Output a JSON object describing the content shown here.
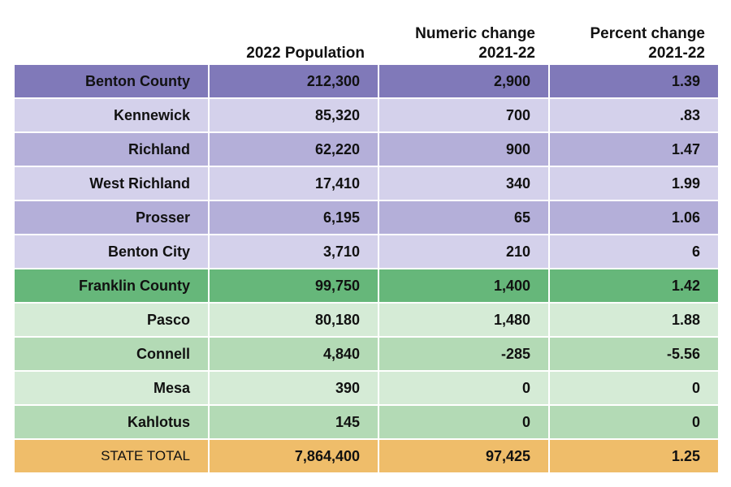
{
  "chart_data": {
    "type": "table",
    "columns": [
      "",
      "2022 Population",
      "Numeric change 2021-22",
      "Percent change 2021-22"
    ],
    "header_lines": [
      [
        ""
      ],
      [
        "2022 Population"
      ],
      [
        "Numeric change",
        "2021-22"
      ],
      [
        "Percent change",
        "2021-22"
      ]
    ],
    "rows": [
      {
        "name": "Benton County",
        "population": "212,300",
        "numeric_change": "2,900",
        "percent_change": "1.39",
        "kind": "county",
        "color": "#8079b9"
      },
      {
        "name": "Kennewick",
        "population": "85,320",
        "numeric_change": "700",
        "percent_change": ".83",
        "kind": "city",
        "color": "#d4d1eb"
      },
      {
        "name": "Richland",
        "population": "62,220",
        "numeric_change": "900",
        "percent_change": "1.47",
        "kind": "city",
        "color": "#b4afd9"
      },
      {
        "name": "West Richland",
        "population": "17,410",
        "numeric_change": "340",
        "percent_change": "1.99",
        "kind": "city",
        "color": "#d4d1eb"
      },
      {
        "name": "Prosser",
        "population": "6,195",
        "numeric_change": "65",
        "percent_change": "1.06",
        "kind": "city",
        "color": "#b4afd9"
      },
      {
        "name": "Benton City",
        "population": "3,710",
        "numeric_change": "210",
        "percent_change": "6",
        "kind": "city",
        "color": "#d4d1eb"
      },
      {
        "name": "Franklin County",
        "population": "99,750",
        "numeric_change": "1,400",
        "percent_change": "1.42",
        "kind": "county",
        "color": "#66b77a"
      },
      {
        "name": "Pasco",
        "population": "80,180",
        "numeric_change": "1,480",
        "percent_change": "1.88",
        "kind": "city",
        "color": "#d5ebd6"
      },
      {
        "name": "Connell",
        "population": "4,840",
        "numeric_change": "-285",
        "percent_change": "-5.56",
        "kind": "city",
        "color": "#b3dab5"
      },
      {
        "name": "Mesa",
        "population": "390",
        "numeric_change": "0",
        "percent_change": "0",
        "kind": "city",
        "color": "#d5ebd6"
      },
      {
        "name": "Kahlotus",
        "population": "145",
        "numeric_change": "0",
        "percent_change": "0",
        "kind": "city",
        "color": "#b3dab5"
      },
      {
        "name": "STATE TOTAL",
        "population": "7,864,400",
        "numeric_change": "97,425",
        "percent_change": "1.25",
        "kind": "state",
        "color": "#efbd6a"
      }
    ]
  }
}
